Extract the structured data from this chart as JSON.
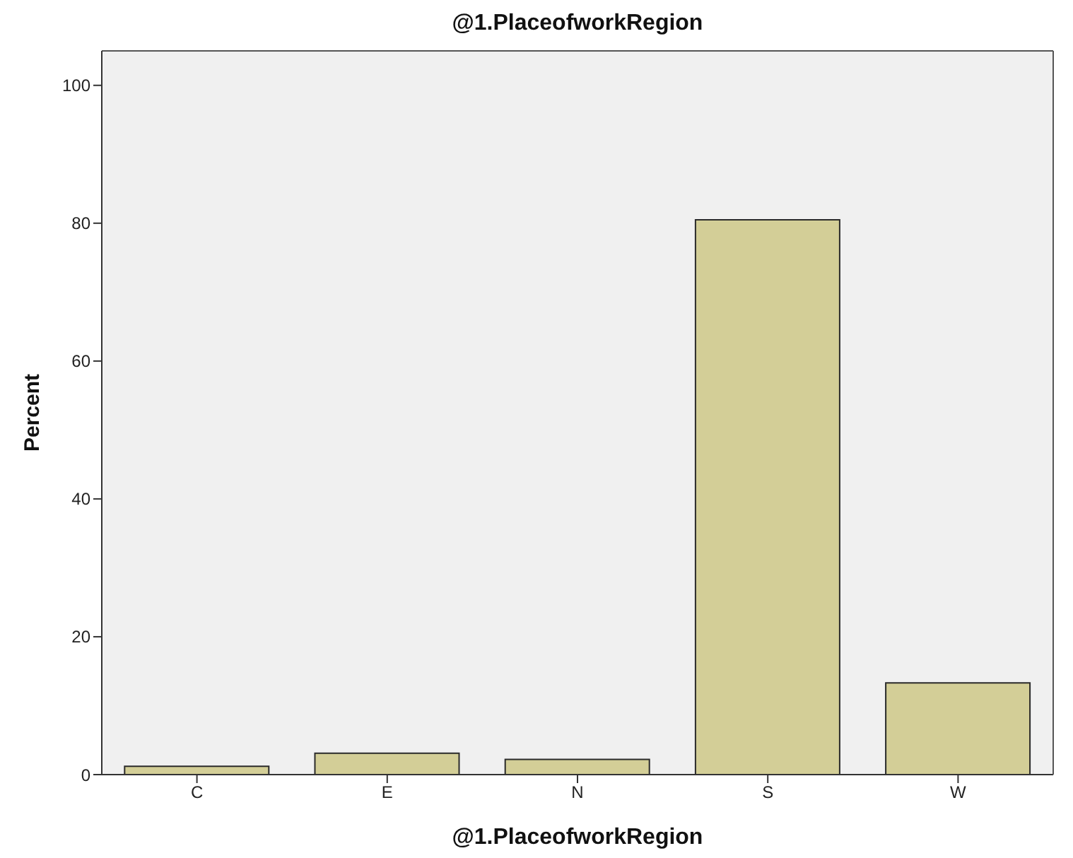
{
  "chart_data": {
    "type": "bar",
    "title": "@1.PlaceofworkRegion",
    "xlabel": "@1.PlaceofworkRegion",
    "ylabel": "Percent",
    "categories": [
      "C",
      "E",
      "N",
      "S",
      "W"
    ],
    "values": [
      1.2,
      3.1,
      2.2,
      80.5,
      13.3
    ],
    "color": "#d3ce97",
    "ylim": [
      0,
      105
    ],
    "yticks": [
      0,
      20,
      40,
      60,
      80,
      100
    ],
    "grid": false
  }
}
